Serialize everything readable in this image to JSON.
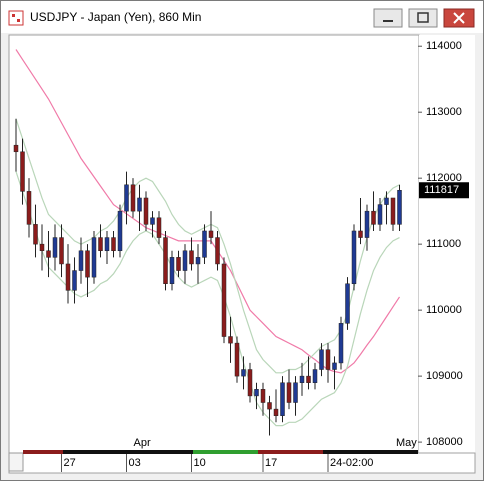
{
  "window": {
    "title": "USDJPY - Japan (Yen), 860 Min"
  },
  "chart_data": {
    "type": "candlestick",
    "categories": [
      null,
      null,
      null,
      null,
      null,
      null,
      null,
      "27",
      null,
      null,
      null,
      null,
      null,
      null,
      null,
      null,
      null,
      "03",
      null,
      null,
      null,
      null,
      null,
      null,
      null,
      null,
      null,
      "10",
      null,
      null,
      null,
      null,
      null,
      null,
      null,
      null,
      null,
      null,
      "17",
      null,
      null,
      null,
      null,
      null,
      null,
      null,
      null,
      null,
      "24-02:00",
      null,
      null,
      null,
      null,
      null,
      null,
      null,
      null,
      null,
      null,
      null
    ],
    "months": [
      {
        "value": 19,
        "label": "Apr"
      },
      {
        "value": 60,
        "label": "May"
      }
    ],
    "open": [
      112500,
      112400,
      111800,
      111300,
      111000,
      110900,
      110800,
      111100,
      110700,
      110300,
      110600,
      110900,
      110500,
      111100,
      110900,
      111100,
      110900,
      111500,
      111900,
      111500,
      111700,
      111300,
      111400,
      111100,
      110400,
      110800,
      110600,
      110900,
      110700,
      110800,
      111200,
      111100,
      110700,
      109600,
      109500,
      109000,
      109100,
      108700,
      108800,
      108600,
      108500,
      108400,
      108900,
      108600,
      108900,
      109000,
      108900,
      109100,
      109400,
      109100,
      109200,
      109800,
      110400,
      111200,
      111100,
      111500,
      111300,
      111600,
      111700,
      111300
    ],
    "high": [
      112900,
      112600,
      112000,
      111600,
      111300,
      111200,
      111300,
      111300,
      111000,
      110800,
      111100,
      111000,
      111200,
      111300,
      111200,
      111200,
      111600,
      112100,
      112000,
      111900,
      111800,
      111500,
      111500,
      111200,
      110900,
      110900,
      111000,
      111100,
      111000,
      111300,
      111500,
      111200,
      110800,
      109900,
      109600,
      109300,
      109200,
      108900,
      108900,
      108700,
      108800,
      109000,
      109100,
      109000,
      109200,
      109300,
      109200,
      109500,
      109500,
      109300,
      109900,
      110500,
      111300,
      111700,
      111600,
      111800,
      111700,
      111800,
      111700,
      111900
    ],
    "low": [
      112100,
      111600,
      111100,
      110800,
      110600,
      110500,
      110600,
      110500,
      110100,
      110100,
      110400,
      110200,
      110400,
      110800,
      110700,
      110800,
      110800,
      111300,
      111400,
      111200,
      111200,
      111100,
      111000,
      110300,
      110300,
      110500,
      110400,
      110600,
      110400,
      110700,
      111000,
      110600,
      109500,
      109200,
      108900,
      108800,
      108600,
      108500,
      108400,
      108100,
      108300,
      108300,
      108500,
      108400,
      108700,
      108800,
      108800,
      109000,
      108900,
      108800,
      109100,
      109700,
      110300,
      111000,
      110900,
      111200,
      111200,
      111300,
      111200,
      111200
    ],
    "close": [
      112400,
      111800,
      111300,
      111000,
      110900,
      110800,
      111100,
      110700,
      110300,
      110600,
      110900,
      110500,
      111100,
      110900,
      111100,
      110900,
      111500,
      111900,
      111500,
      111700,
      111300,
      111400,
      111100,
      110400,
      110800,
      110600,
      110900,
      110700,
      110800,
      111200,
      111100,
      110700,
      109600,
      109500,
      109000,
      109100,
      108700,
      108800,
      108600,
      108500,
      108400,
      108900,
      108600,
      108900,
      109000,
      108900,
      109100,
      109400,
      109100,
      109200,
      109800,
      110400,
      111200,
      111100,
      111500,
      111300,
      111600,
      111700,
      111300,
      111817
    ],
    "up_color": "#1f3a93",
    "down_color": "#8b1c1c",
    "series": [
      {
        "color": "#f07aa8",
        "values": [
          113950,
          113800,
          113650,
          113500,
          113350,
          113200,
          113020,
          112840,
          112660,
          112480,
          112300,
          112160,
          112020,
          111880,
          111740,
          111600,
          111530,
          111460,
          111390,
          111320,
          111250,
          111210,
          111170,
          111130,
          111090,
          111050,
          111050,
          111050,
          111050,
          111050,
          111050,
          110900,
          110750,
          110600,
          110400,
          110200,
          110000,
          109900,
          109800,
          109700,
          109600,
          109550,
          109500,
          109450,
          109400,
          109320,
          109250,
          109170,
          109100,
          109070,
          109050,
          109120,
          109200,
          109330,
          109470,
          109600,
          109750,
          109900,
          110050,
          110200
        ]
      },
      {
        "color": "#b9d6b9",
        "values": [
          112900,
          112600,
          112300,
          112000,
          111700,
          111450,
          111350,
          111250,
          111150,
          111050,
          111000,
          111050,
          111100,
          111200,
          111250,
          111350,
          111500,
          111700,
          111850,
          111950,
          112000,
          111950,
          111800,
          111650,
          111450,
          111300,
          111200,
          111150,
          111200,
          111250,
          111300,
          111250,
          111000,
          110700,
          110350,
          110000,
          109700,
          109400,
          109250,
          109150,
          109050,
          109050,
          109100,
          109100,
          109150,
          109250,
          109350,
          109450,
          109500,
          109550,
          109700,
          109950,
          110350,
          110750,
          111100,
          111400,
          111600,
          111750,
          111850,
          111900
        ]
      },
      {
        "color": "#b9d6b9",
        "values": [
          112100,
          111800,
          111500,
          111200,
          110900,
          110650,
          110550,
          110450,
          110350,
          110250,
          110200,
          110250,
          110300,
          110400,
          110450,
          110550,
          110700,
          110900,
          111050,
          111150,
          111200,
          111150,
          111000,
          110850,
          110650,
          110500,
          110400,
          110350,
          110400,
          110450,
          110500,
          110450,
          110200,
          109900,
          109550,
          109200,
          108900,
          108600,
          108450,
          108350,
          108250,
          108250,
          108300,
          108300,
          108350,
          108450,
          108550,
          108650,
          108700,
          108750,
          108900,
          109150,
          109550,
          109950,
          110300,
          110600,
          110800,
          110950,
          111050,
          111100
        ]
      }
    ],
    "ylim": [
      107850,
      114170
    ],
    "yticks": [
      108000,
      109000,
      110000,
      111000,
      112000,
      113000,
      114000
    ]
  }
}
